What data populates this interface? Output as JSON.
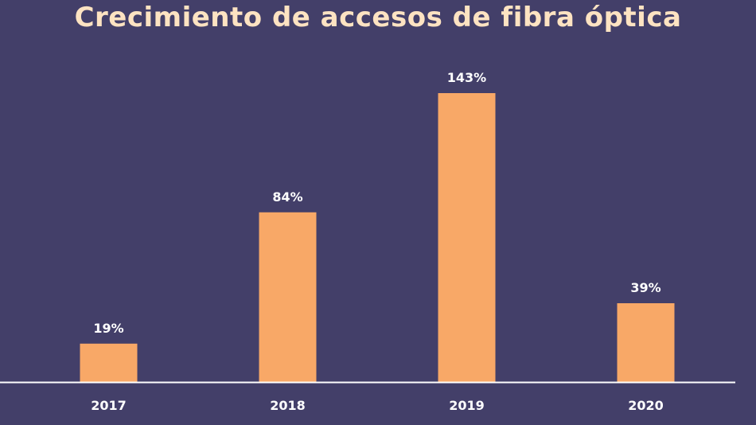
{
  "chart_data": {
    "type": "bar",
    "title": "Crecimiento de accesos de fibra óptica",
    "categories": [
      "2017",
      "2018",
      "2019",
      "2020"
    ],
    "values": [
      19,
      84,
      143,
      39
    ],
    "data_labels": [
      "19%",
      "84%",
      "143%",
      "39%"
    ],
    "xlabel": "",
    "ylabel": "",
    "ylim": [
      0,
      160
    ],
    "grid": false,
    "legend": "none"
  },
  "colors": {
    "background": "#433f69",
    "bar": "#f8a867",
    "title": "#fde3c2",
    "label": "#ffffff",
    "axis": "#ffffff"
  }
}
